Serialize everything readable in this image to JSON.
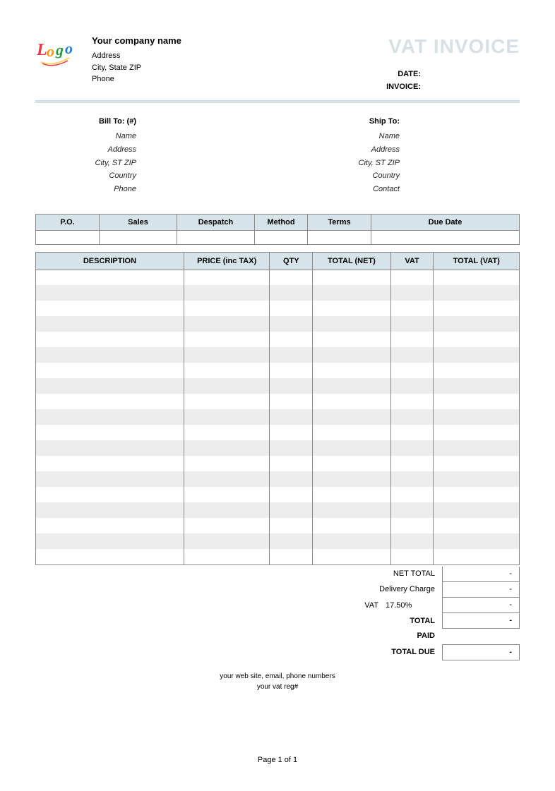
{
  "header": {
    "company_name": "Your company name",
    "address": "Address",
    "city_state_zip": "City, State ZIP",
    "phone": "Phone",
    "vat_title": "VAT INVOICE",
    "date_label": "DATE:",
    "invoice_label": "INVOICE:"
  },
  "bill_to": {
    "title": "Bill To:  (#)",
    "name": "Name",
    "address": "Address",
    "city": "City, ST ZIP",
    "country": "Country",
    "phone": "Phone"
  },
  "ship_to": {
    "title": "Ship To:",
    "name": "Name",
    "address": "Address",
    "city": "City, ST ZIP",
    "country": "Country",
    "contact": "Contact"
  },
  "order_table": {
    "headers": [
      "P.O.",
      "Sales",
      "Despatch",
      "Method",
      "Terms",
      "Due Date"
    ]
  },
  "items_table": {
    "headers": [
      "DESCRIPTION",
      "PRICE (inc TAX)",
      "QTY",
      "TOTAL (NET)",
      "VAT",
      "TOTAL (VAT)"
    ],
    "row_count": 19,
    "stripe_color": "#ededed",
    "header_bg": "#d6e3e8",
    "border_color": "#888888"
  },
  "totals": {
    "net_total_label": "NET TOTAL",
    "net_total_val": "-",
    "delivery_label": "Delivery Charge",
    "delivery_val": "-",
    "vat_label": "VAT",
    "vat_rate": "17.50%",
    "vat_val": "-",
    "total_label": "TOTAL",
    "total_val": "-",
    "paid_label": "PAID",
    "paid_val": "",
    "total_due_label": "TOTAL DUE",
    "total_due_val": "-"
  },
  "footer": {
    "line1": "your web site, email, phone numbers",
    "line2": "your vat reg#",
    "page": "Page 1 of 1"
  },
  "colors": {
    "header_light": "#d6e0e5",
    "table_header": "#d6e3e8",
    "divider": "#c5d9e0"
  }
}
